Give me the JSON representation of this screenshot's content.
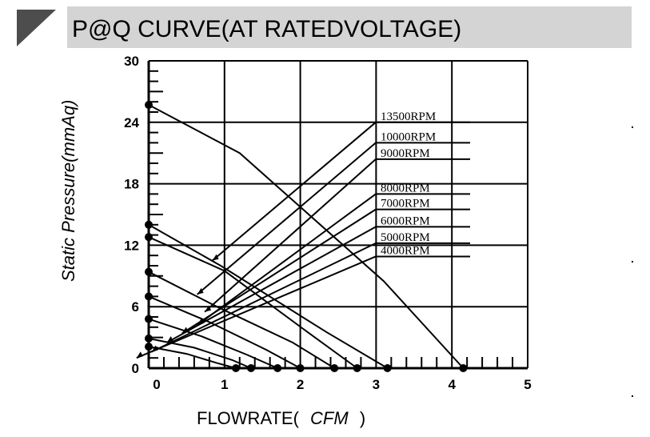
{
  "chart_data": {
    "type": "line",
    "title": "P@Q CURVE(AT RATEDVOLTAGE)",
    "xlabel": "FLOWRATE(",
    "xlabel_unit": "CFM",
    "xlabel_close": ")",
    "ylabel": "Static Pressure(mmAq)",
    "xlim": [
      0,
      5
    ],
    "ylim": [
      0,
      30
    ],
    "x_ticks": [
      "0",
      "1",
      "2",
      "3",
      "4",
      "5"
    ],
    "y_ticks": [
      "0",
      "6",
      "12",
      "18",
      "24",
      "30"
    ],
    "x_tick_values": [
      0,
      1,
      2,
      3,
      4,
      5
    ],
    "y_tick_values": [
      0,
      6,
      12,
      18,
      24,
      30
    ],
    "grid": true,
    "legend_position": "right",
    "series": [
      {
        "name": "13500RPM",
        "x": [
          0,
          1.2,
          3.1,
          4.15
        ],
        "y": [
          25.7,
          21,
          8.5,
          0
        ],
        "label_ref": [
          2.0,
          10.5
        ],
        "label_key": 24
      },
      {
        "name": "10000RPM",
        "x": [
          0,
          0.95,
          2.35,
          3.15
        ],
        "y": [
          14,
          10,
          3.5,
          0
        ],
        "label_ref": [
          1.8,
          7.2
        ],
        "label_key": 22
      },
      {
        "name": "9000RPM",
        "x": [
          0,
          1.0,
          2.1,
          2.75
        ],
        "y": [
          12.8,
          9.5,
          3.5,
          0
        ],
        "label_ref": [
          1.9,
          5.5
        ],
        "label_key": 20.4
      },
      {
        "name": "8000RPM",
        "x": [
          0,
          0.9,
          1.9,
          2.45
        ],
        "y": [
          9.4,
          6,
          2.5,
          0
        ],
        "label_ref": [
          1.8,
          4.2
        ],
        "label_key": 17
      },
      {
        "name": "7000RPM",
        "x": [
          0,
          0.8,
          1.55,
          2.0
        ],
        "y": [
          7,
          4.5,
          1.8,
          0
        ],
        "label_ref": [
          1.6,
          3.4
        ],
        "label_key": 15.5
      },
      {
        "name": "6000RPM",
        "x": [
          0,
          0.7,
          1.3,
          1.7
        ],
        "y": [
          4.8,
          3.1,
          1.3,
          0
        ],
        "label_ref": [
          1.4,
          2.5
        ],
        "label_key": 13.8
      },
      {
        "name": "5000RPM",
        "x": [
          0,
          0.6,
          1.1,
          1.35
        ],
        "y": [
          2.9,
          2.0,
          0.8,
          0
        ],
        "label_ref": [
          1.2,
          1.6
        ],
        "label_key": 12.2
      },
      {
        "name": "4000RPM",
        "x": [
          0,
          0.5,
          0.9,
          1.15
        ],
        "y": [
          2.1,
          1.4,
          0.5,
          0
        ],
        "label_ref": [
          1.0,
          1.0
        ],
        "label_key": 10.9
      }
    ]
  }
}
